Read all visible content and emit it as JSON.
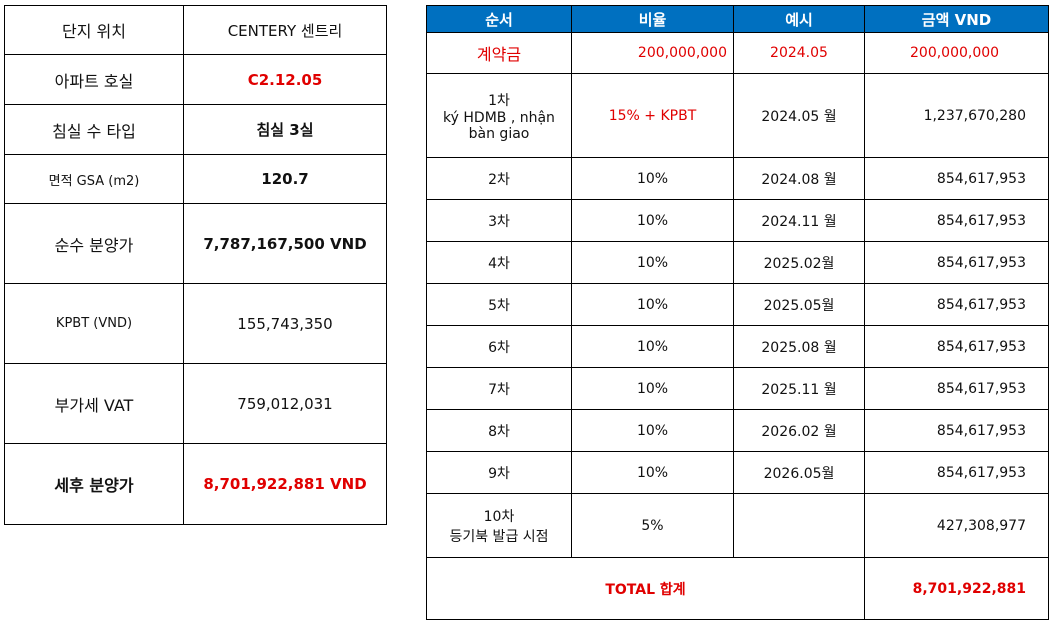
{
  "left": {
    "rows": [
      {
        "label": "단지 위치",
        "value": "CENTERY 센트리"
      },
      {
        "label": "아파트 호실",
        "value": "C2.12.05"
      },
      {
        "label": "침실 수 타입",
        "value": "침실 3실"
      },
      {
        "label": "면적 GSA (m2)",
        "value": "120.7"
      },
      {
        "label": "순수 분양가",
        "value": "7,787,167,500 VND"
      },
      {
        "label": "KPBT (VND)",
        "value": "155,743,350"
      },
      {
        "label": "부가세 VAT",
        "value": "759,012,031"
      },
      {
        "label": "세후 분양가",
        "value": "8,701,922,881 VND"
      }
    ]
  },
  "right": {
    "headers": {
      "order": "순서",
      "ratio": "비율",
      "expected": "예시",
      "amount": "금액 VND"
    },
    "deposit": {
      "order": "계약금",
      "ratio": "200,000,000",
      "expected": "2024.05",
      "amount": "200,000,000"
    },
    "rows": [
      {
        "order_line1": "1차",
        "order_line2": "ký HDMB , nhận",
        "order_line3": "bàn giao",
        "ratio": "15% + KPBT",
        "expected": "2024.05 월",
        "amount": "1,237,670,280"
      },
      {
        "order": "2차",
        "ratio": "10%",
        "expected": "2024.08 월",
        "amount": "854,617,953"
      },
      {
        "order": "3차",
        "ratio": "10%",
        "expected": "2024.11 월",
        "amount": "854,617,953"
      },
      {
        "order": "4차",
        "ratio": "10%",
        "expected": "2025.02월",
        "amount": "854,617,953"
      },
      {
        "order": "5차",
        "ratio": "10%",
        "expected": "2025.05월",
        "amount": "854,617,953"
      },
      {
        "order": "6차",
        "ratio": "10%",
        "expected": "2025.08 월",
        "amount": "854,617,953"
      },
      {
        "order": "7차",
        "ratio": "10%",
        "expected": "2025.11 월",
        "amount": "854,617,953"
      },
      {
        "order": "8차",
        "ratio": "10%",
        "expected": "2026.02 월",
        "amount": "854,617,953"
      },
      {
        "order": "9차",
        "ratio": "10%",
        "expected": "2026.05월",
        "amount": "854,617,953"
      },
      {
        "order_line1": "10차",
        "order_line2": "등기북 발급 시점",
        "ratio": "5%",
        "expected": "",
        "amount": "427,308,977"
      }
    ],
    "total": {
      "label": "TOTAL 합계",
      "amount": "8,701,922,881"
    }
  },
  "colors": {
    "header_bg": "#0070c0",
    "highlight": "#e00000"
  }
}
